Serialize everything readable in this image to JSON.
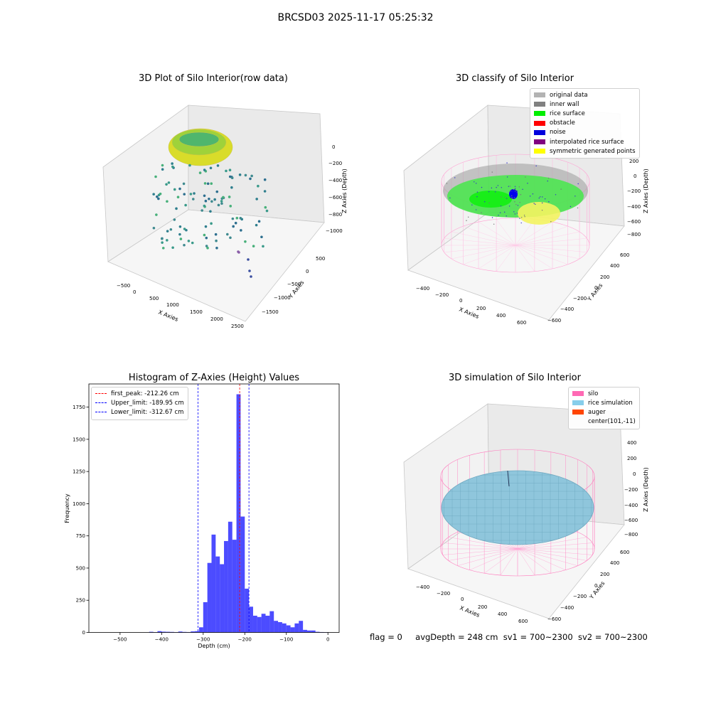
{
  "suptitle": "BRCSD03 2025-11-17 05:25:32",
  "panels": {
    "raw": {
      "title": "3D Plot of Silo Interior(row data)",
      "xlabel": "X Axies",
      "ylabel": "Y Axies",
      "zlabel": "Z Axies (Depth)",
      "xticks": [
        "−500",
        "0",
        "500",
        "1000",
        "1500",
        "2000",
        "2500"
      ],
      "yticks": [
        "500",
        "0",
        "−500",
        "−1000",
        "−1500"
      ],
      "zticks": [
        "0",
        "−200",
        "−400",
        "−600",
        "−800",
        "−1000"
      ]
    },
    "classify": {
      "title": "3D classify of Silo Interior",
      "xlabel": "X Axies",
      "ylabel": "Y Axies",
      "zlabel": "Z Axies (Depth)",
      "xticks": [
        "−400",
        "−200",
        "0",
        "200",
        "400",
        "600"
      ],
      "yticks": [
        "600",
        "400",
        "200",
        "0",
        "−200",
        "−400",
        "−600"
      ],
      "zticks": [
        "200",
        "0",
        "−200",
        "−400",
        "−600",
        "−800"
      ],
      "legend": [
        {
          "label": "original data",
          "color": "#b3b3b3"
        },
        {
          "label": "inner wall",
          "color": "#808080"
        },
        {
          "label": "rice surface",
          "color": "#00ee00"
        },
        {
          "label": "obstacle",
          "color": "#ff0000"
        },
        {
          "label": "noise",
          "color": "#0000dd"
        },
        {
          "label": "interpolated rice surface",
          "color": "#800080"
        },
        {
          "label": "symmetric generated points",
          "color": "#ffff00"
        }
      ]
    },
    "simulation": {
      "title": "3D simulation of Silo Interior",
      "xlabel": "X Axies",
      "ylabel": "Y Axies",
      "zlabel": "Z Axies (Depth)",
      "xticks": [
        "−400",
        "−200",
        "0",
        "200",
        "400",
        "600"
      ],
      "yticks": [
        "600",
        "400",
        "200",
        "0",
        "−200",
        "−400",
        "−600"
      ],
      "zticks": [
        "400",
        "200",
        "0",
        "−200",
        "−400",
        "−600",
        "−800"
      ],
      "legend": [
        {
          "label": "silo",
          "color": "#ff69b4"
        },
        {
          "label": "rice simulation",
          "color": "#87ceeb"
        },
        {
          "label": "auger",
          "color": "#ff4500"
        },
        {
          "label": "center(101,-11)",
          "color": ""
        }
      ]
    }
  },
  "status": {
    "flag": "flag = 0",
    "avg_depth": "avgDepth = 248 cm",
    "sv1": "sv1 = 700~2300",
    "sv2": "sv2 = 700~2300"
  },
  "chart_data": [
    {
      "type": "bar",
      "title": "Histogram of Z-Axies (Height) Values",
      "xlabel": "Depth (cm)",
      "ylabel": "Frequency",
      "xlim": [
        -575,
        27
      ],
      "ylim": [
        0,
        1930
      ],
      "xticks": [
        -500,
        -400,
        -300,
        -200,
        -100,
        0
      ],
      "yticks": [
        0,
        250,
        500,
        750,
        1000,
        1250,
        1500,
        1750
      ],
      "bar_color": "#0000ff",
      "bin_width": 10,
      "bins": [
        {
          "x": -425,
          "value": 5
        },
        {
          "x": -415,
          "value": 2
        },
        {
          "x": -405,
          "value": 10
        },
        {
          "x": -395,
          "value": 6
        },
        {
          "x": -385,
          "value": 5
        },
        {
          "x": -375,
          "value": 4
        },
        {
          "x": -365,
          "value": 2
        },
        {
          "x": -355,
          "value": 7
        },
        {
          "x": -345,
          "value": 4
        },
        {
          "x": -335,
          "value": 3
        },
        {
          "x": -325,
          "value": 8
        },
        {
          "x": -315,
          "value": 10
        },
        {
          "x": -305,
          "value": 40
        },
        {
          "x": -295,
          "value": 235
        },
        {
          "x": -285,
          "value": 540
        },
        {
          "x": -275,
          "value": 760
        },
        {
          "x": -265,
          "value": 590
        },
        {
          "x": -255,
          "value": 530
        },
        {
          "x": -245,
          "value": 710
        },
        {
          "x": -235,
          "value": 860
        },
        {
          "x": -225,
          "value": 720
        },
        {
          "x": -215,
          "value": 1850
        },
        {
          "x": -205,
          "value": 900
        },
        {
          "x": -195,
          "value": 340
        },
        {
          "x": -185,
          "value": 200
        },
        {
          "x": -175,
          "value": 130
        },
        {
          "x": -165,
          "value": 120
        },
        {
          "x": -155,
          "value": 145
        },
        {
          "x": -145,
          "value": 130
        },
        {
          "x": -135,
          "value": 165
        },
        {
          "x": -125,
          "value": 90
        },
        {
          "x": -115,
          "value": 80
        },
        {
          "x": -105,
          "value": 70
        },
        {
          "x": -95,
          "value": 55
        },
        {
          "x": -85,
          "value": 40
        },
        {
          "x": -75,
          "value": 70
        },
        {
          "x": -65,
          "value": 90
        },
        {
          "x": -55,
          "value": 20
        },
        {
          "x": -45,
          "value": 15
        },
        {
          "x": -35,
          "value": 15
        },
        {
          "x": -25,
          "value": 5
        },
        {
          "x": -15,
          "value": 3
        },
        {
          "x": -5,
          "value": 2
        }
      ],
      "lines": [
        {
          "label": "first_peak: -212.26 cm",
          "x": -212.26,
          "color": "#ff0000"
        },
        {
          "label": "Upper_limit: -189.95 cm",
          "x": -189.95,
          "color": "#0000ff"
        },
        {
          "label": "Lower_limit: -312.67 cm",
          "x": -312.67,
          "color": "#0000ff"
        }
      ],
      "legend_position": "upper-left"
    }
  ]
}
